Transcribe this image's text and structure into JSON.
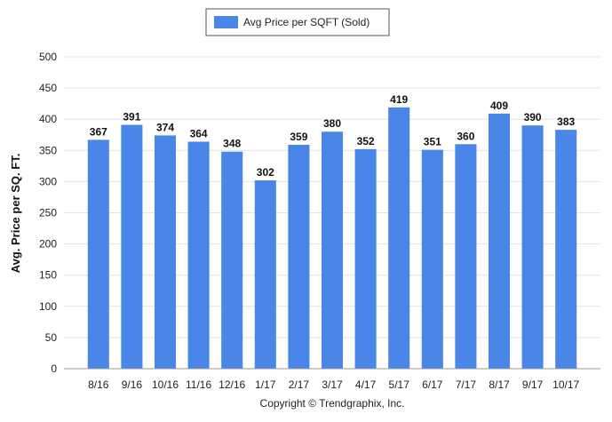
{
  "chart_data": {
    "type": "bar",
    "categories": [
      "8/16",
      "9/16",
      "10/16",
      "11/16",
      "12/16",
      "1/17",
      "2/17",
      "3/17",
      "4/17",
      "5/17",
      "6/17",
      "7/17",
      "8/17",
      "9/17",
      "10/17"
    ],
    "series": [
      {
        "name": "Avg Price per SQFT (Sold)",
        "values": [
          367,
          391,
          374,
          364,
          348,
          302,
          359,
          380,
          352,
          419,
          351,
          360,
          409,
          390,
          383
        ]
      }
    ],
    "ylabel": "Avg. Price per SQ. FT.",
    "xlabel": "",
    "ylim": [
      0,
      500
    ],
    "yticks": [
      0,
      50,
      100,
      150,
      200,
      250,
      300,
      350,
      400,
      450,
      500
    ],
    "grid": true,
    "legend_position": "top-center",
    "data_labels": true,
    "colors": {
      "bar": "#4a86e8",
      "grid": "#e3e3e3",
      "axis": "#9a9a9a"
    }
  },
  "footer": {
    "copyright": "Copyright © Trendgraphix, Inc."
  }
}
